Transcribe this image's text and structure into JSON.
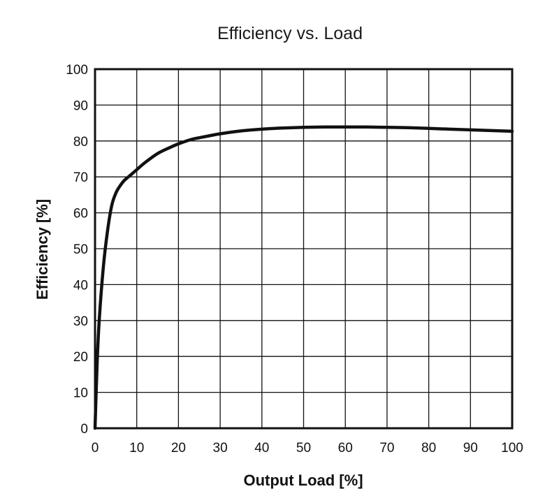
{
  "chart_data": {
    "type": "line",
    "title": "Efficiency vs. Load",
    "xlabel": "Output Load [%]",
    "ylabel": "Efficiency [%]",
    "xlim": [
      0,
      100
    ],
    "ylim": [
      0,
      100
    ],
    "x_ticks": [
      0,
      10,
      20,
      30,
      40,
      50,
      60,
      70,
      80,
      90,
      100
    ],
    "y_ticks": [
      0,
      10,
      20,
      30,
      40,
      50,
      60,
      70,
      80,
      90,
      100
    ],
    "grid": true,
    "legend": "none",
    "series": [
      {
        "color": "#111111",
        "x": [
          0,
          0.5,
          1,
          2,
          3,
          4,
          5,
          6,
          7,
          8,
          10,
          12,
          15,
          18,
          20,
          23,
          25,
          30,
          35,
          40,
          45,
          50,
          55,
          60,
          65,
          70,
          75,
          80,
          85,
          90,
          95,
          100
        ],
        "y": [
          0,
          18,
          30,
          45,
          55,
          62,
          65.5,
          67.5,
          69,
          70,
          72,
          74,
          76.5,
          78.2,
          79.2,
          80.4,
          80.9,
          82,
          82.8,
          83.3,
          83.6,
          83.8,
          83.9,
          83.9,
          83.9,
          83.8,
          83.7,
          83.5,
          83.3,
          83.1,
          82.9,
          82.7
        ]
      }
    ]
  }
}
